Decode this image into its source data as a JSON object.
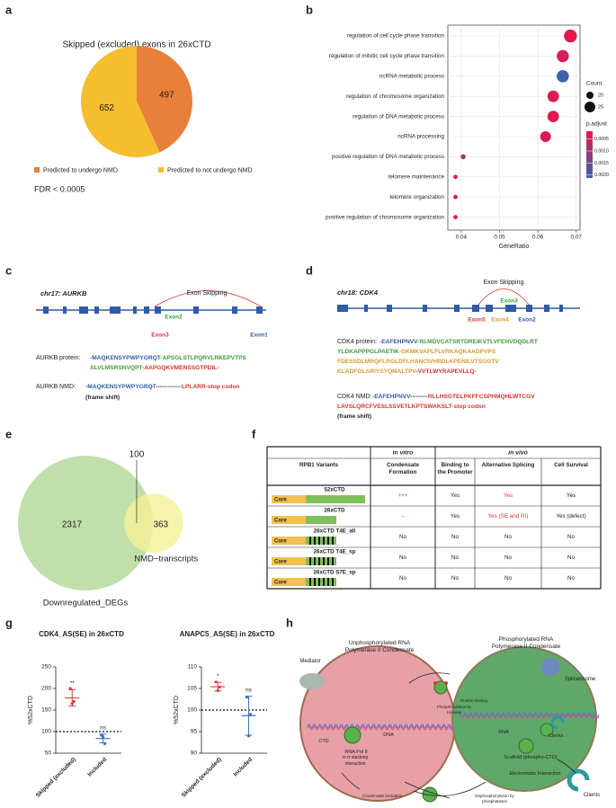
{
  "panel_labels": [
    "a",
    "b",
    "c",
    "d",
    "e",
    "f",
    "g",
    "h"
  ],
  "chart_data": [
    {
      "type": "pie",
      "title": "Skipped (excluded) exons in 26xCTD",
      "categories": [
        "Predicted to undergo NMD",
        "Predicted to not undergo NMD"
      ],
      "values": [
        497,
        652
      ],
      "colors": [
        "#E8803A",
        "#F6BD2F"
      ],
      "annotation": "FDR < 0.0005"
    },
    {
      "type": "dot",
      "categories": [
        "regulation of cell cycle phase transition",
        "regulation of mitotic cell cycle phase transition",
        "ncRNA metabolic process",
        "regulation of chromosome organization",
        "regulation of DNA metabolic process",
        "ncRNA processing",
        "positive regulation of DNA metabolic process",
        "telomere maintenance",
        "telomere organization",
        "positive regulation of chromosome organization"
      ],
      "x": [
        0.0685,
        0.0665,
        0.0665,
        0.064,
        0.064,
        0.062,
        0.0405,
        0.0385,
        0.0385,
        0.0385
      ],
      "size": [
        28,
        27,
        27,
        26,
        26,
        25,
        17,
        16,
        16,
        16
      ],
      "color_values": [
        0.0002,
        0.0004,
        0.0021,
        0.0003,
        0.0003,
        0.0004,
        0.0012,
        0.0003,
        0.0003,
        0.0003
      ],
      "x_label": "GeneRatio",
      "xlim": [
        0.0365,
        0.071
      ],
      "xticks": [
        0.04,
        0.05,
        0.06,
        0.07
      ],
      "grid": true,
      "size_legend": {
        "title": "Count",
        "values": [
          20,
          25
        ]
      },
      "color_legend": {
        "title": "p.adjust",
        "lim": [
          0.00018,
          0.00212
        ],
        "ticks": [
          0.0005,
          {
            "value": 0.001,
            "label": "0.0010"
          },
          0.0015,
          {
            "value": 0.002,
            "label": "0.0020"
          }
        ],
        "colors": [
          "#E8174A",
          "#3C63AC"
        ]
      }
    },
    {
      "type": "venn",
      "sets": [
        {
          "name": "Downregulated_DEGs",
          "value": 2317,
          "color": "#B5D99C"
        },
        {
          "name": "NMD−transcripts",
          "value": 363,
          "color": "#F4F096"
        }
      ],
      "overlap": 100
    },
    {
      "type": "strip",
      "title": "CDK4_AS(SE) in 26xCTD",
      "y_label": "%52xCTD",
      "ylim": [
        50,
        250
      ],
      "yticks": [
        50,
        100,
        150,
        200,
        250
      ],
      "reference_line": 100,
      "categories": [
        "Skipped (excluded)",
        "Included"
      ],
      "values": [
        [
          200,
          165,
          170
        ],
        [
          92,
          88,
          72
        ]
      ],
      "means": [
        178,
        84
      ],
      "errors": [
        19,
        10
      ],
      "colors": [
        "#E03A3A",
        "#3A6FC4"
      ],
      "significance": [
        "**",
        "ns"
      ]
    },
    {
      "type": "strip",
      "title": "ANAPC5_AS(SE) in 26xCTD",
      "y_label": "%52xCTD",
      "ylim": [
        90,
        110
      ],
      "yticks": [
        90,
        95,
        100,
        105,
        110
      ],
      "reference_line": 100,
      "categories": [
        "Skipped (excluded)",
        "Included"
      ],
      "values": [
        [
          106.5,
          104.5,
          105.3
        ],
        [
          103,
          94,
          99
        ]
      ],
      "means": [
        105.4,
        98.7
      ],
      "errors": [
        1,
        4.5
      ],
      "colors": [
        "#E03A3A",
        "#3A6FC4"
      ],
      "significance": [
        "*",
        "ns"
      ]
    }
  ],
  "gene_panels": [
    {
      "chrom": "chr17: AURKB",
      "event": "Exon Skipping",
      "exons": [
        {
          "label": "Exon2",
          "color": "#3E9A3E"
        },
        {
          "label": "Exon3",
          "color": "#D9342B"
        },
        {
          "label": "Exon1",
          "color": "#2F5BA8"
        }
      ],
      "protein_label": "AURKB protein:",
      "protein_lines": [
        [
          {
            "text": "-MAQKENSYPWPYGRQT",
            "color": "#2F5BA8"
          },
          {
            "text": "-APSGLSTLPQRVLRKEPVTPS",
            "color": "#3E9A3E"
          }
        ],
        [
          {
            "text": "ALVLMSRSNVQPT",
            "color": "#3E9A3E"
          },
          {
            "text": "-AAPGQKVMENSSGTPDIL-",
            "color": "#D9342B"
          }
        ]
      ],
      "nmd_label": "AURKB NMD:",
      "nmd_lines": [
        [
          {
            "text": "-MAQKENSYPWPYGRQT",
            "color": "#2F5BA8"
          },
          {
            "text": "------------",
            "color": "#222222"
          },
          {
            "text": "-LPLARR-stop codon",
            "color": "#D9342B"
          }
        ]
      ],
      "note": "(frame shift)"
    },
    {
      "chrom": "chr18: CDK4",
      "event": "Exon Skipping",
      "exons": [
        {
          "label": "Exon3",
          "color": "#3E9A3E"
        },
        {
          "label": "Exon5",
          "color": "#D9342B"
        },
        {
          "label": "Exon4",
          "color": "#D89A2A"
        },
        {
          "label": "Exon2",
          "color": "#2F5BA8"
        }
      ],
      "protein_label": "CDK4 protein:",
      "protein_lines": [
        [
          {
            "text": "-EAFEHPNVV",
            "color": "#2F5BA8"
          },
          {
            "text": "-RLMDVCATSRTDREIKVTLVFEHVDQDLRT",
            "color": "#3E9A3E"
          }
        ],
        [
          {
            "text": "YLDKAPPPGLPAETIK",
            "color": "#3E9A3E"
          },
          {
            "text": "-GKMKVAPLFLVRKAQKAADPVPS",
            "color": "#D89A2A"
          }
        ],
        [
          {
            "text": "FDESSDLMRQFLRGLDFLHANCIVHRDLKPENILVTSGGTV",
            "color": "#D89A2A"
          }
        ],
        [
          {
            "text": "KLADFGLARIYSYQMALTPV",
            "color": "#D89A2A"
          },
          {
            "text": "-VVTLWYRAPEVLLQ-",
            "color": "#D9342B"
          }
        ]
      ],
      "nmd_label": "CDK4 NMD:",
      "nmd_lines": [
        [
          {
            "text": "-EAFEHPNVV",
            "color": "#2F5BA8"
          },
          {
            "text": "--------",
            "color": "#222222"
          },
          {
            "text": "-RLLHSGTELPKFFCSPHMQHLWTCGV",
            "color": "#D9342B"
          }
        ],
        [
          {
            "text": "LAVSLQRCFVESLSSVETLKPTSWAKSLT-stop codon",
            "color": "#D9342B"
          }
        ]
      ],
      "note": "(frame shift)"
    }
  ],
  "table": {
    "group_headers": [
      "in vitro",
      "in vivo"
    ],
    "headers": [
      "RPB1 Variants",
      "Condensate Formation",
      "Binding to the Promoter",
      "Alternative Splicing",
      "Cell Survival"
    ],
    "rows": [
      {
        "variant": "52xCTD",
        "domain": "Core",
        "cells": [
          {
            "text": "+++",
            "color": "#E03A3A"
          },
          "Yes",
          {
            "text": "Yes",
            "color": "#E03A3A"
          },
          "Yes"
        ]
      },
      {
        "variant": "26xCTD",
        "domain": "Core",
        "cells": [
          {
            "text": "↔",
            "color": "#E03A3A"
          },
          "Yes",
          {
            "text": "Yes (SE and RI)",
            "color": "#E03A3A"
          },
          "Yes (defect)"
        ]
      },
      {
        "variant": "26xCTD T4E_all",
        "domain": "Core",
        "cells": [
          "No",
          "No",
          "No",
          "No"
        ]
      },
      {
        "variant": "26xCTD T4E_sp",
        "domain": "Core",
        "cells": [
          "No",
          "No",
          "No",
          "No"
        ]
      },
      {
        "variant": "26xCTD S7E_sp",
        "domain": "Core",
        "cells": [
          "No",
          "No",
          "No",
          "No"
        ]
      }
    ]
  },
  "diagram": {
    "left_title": "Unphosphorylated RNA Polymerase II Condensate",
    "mediator": "Mediator",
    "ctd": "CTD",
    "pol": "RNA Pol II",
    "dna": "DNA",
    "kinase": "Phosphorylation by Kinases",
    "protein_binding": "Protein binding",
    "stacking": "π-π stacking interaction",
    "condensate": "Condensate formation",
    "dephos": "Dephosphorylation by phosphatases",
    "right_title": "Phosphorylated RNA Polymerase II Condensate",
    "spliceosome": "Spliceosome",
    "rna": "RNA",
    "clients_in": "Clients",
    "scaffold": "Scaffold (phospho-CTD)",
    "electrostatic": "Electrostatic Interaction",
    "clients_out": "Clients"
  }
}
